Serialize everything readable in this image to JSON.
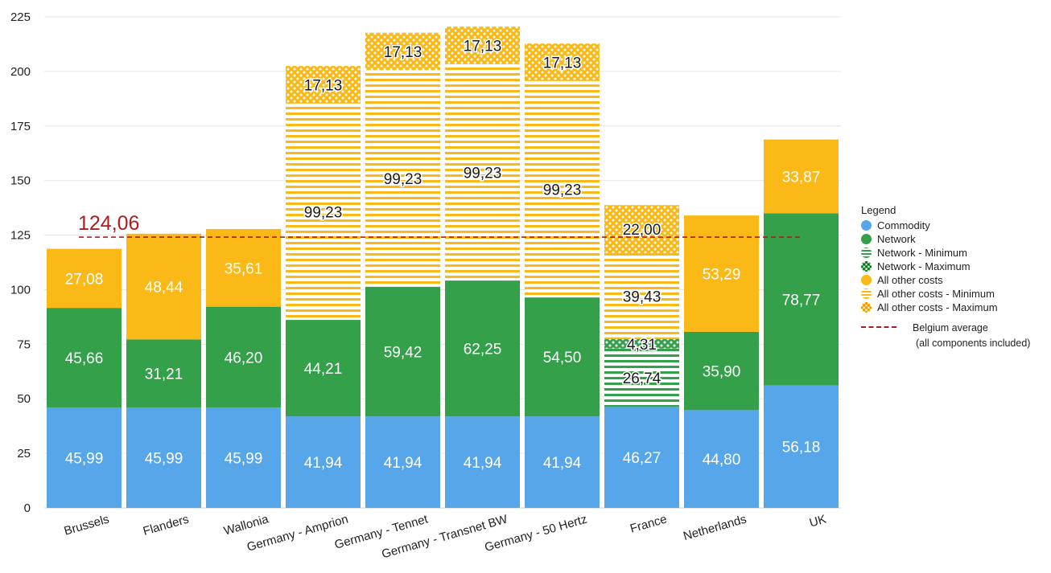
{
  "chart_data": {
    "type": "bar",
    "stacked": true,
    "categories": [
      "Brussels",
      "Flanders",
      "Wallonia",
      "Germany - Amprion",
      "Germany - Tennet",
      "Germany - Transnet BW",
      "Germany - 50 Hertz",
      "France",
      "Netherlands",
      "UK"
    ],
    "ylim": [
      0,
      225
    ],
    "yticks": [
      0,
      25,
      50,
      75,
      100,
      125,
      150,
      175,
      200,
      225
    ],
    "grid": true,
    "series": [
      {
        "name": "Commodity",
        "pattern": "solid",
        "color": "#58a6ea",
        "values": [
          45.99,
          45.99,
          45.99,
          41.94,
          41.94,
          41.94,
          41.94,
          46.27,
          44.8,
          56.18
        ],
        "labels": [
          "45,99",
          "45,99",
          "45,99",
          "41,94",
          "41,94",
          "41,94",
          "41,94",
          "46,27",
          "44,80",
          "56,18"
        ]
      },
      {
        "name": "Network",
        "pattern": "solid",
        "color": "#34a04a",
        "values": [
          45.66,
          31.21,
          46.2,
          44.21,
          59.42,
          62.25,
          54.5,
          0,
          35.9,
          78.77
        ],
        "labels": [
          "45,66",
          "31,21",
          "46,20",
          "44,21",
          "59,42",
          "62,25",
          "54,50",
          "",
          "35,90",
          "78,77"
        ]
      },
      {
        "name": "Network - Minimum",
        "pattern": "stripes",
        "color": "#34a04a",
        "values": [
          0,
          0,
          0,
          0,
          0,
          0,
          0,
          26.74,
          0,
          0
        ],
        "labels": [
          "",
          "",
          "",
          "",
          "",
          "",
          "",
          "26,74",
          "",
          ""
        ]
      },
      {
        "name": "Network - Maximum",
        "pattern": "crosshatch",
        "color": "#34a04a",
        "values": [
          0,
          0,
          0,
          0,
          0,
          0,
          0,
          4.31,
          0,
          0
        ],
        "labels": [
          "",
          "",
          "",
          "",
          "",
          "",
          "",
          "4,31",
          "",
          ""
        ]
      },
      {
        "name": "All other costs",
        "pattern": "solid",
        "color": "#fbb918",
        "values": [
          27.08,
          48.44,
          35.61,
          0,
          0,
          0,
          0,
          0,
          53.29,
          33.87
        ],
        "labels": [
          "27,08",
          "48,44",
          "35,61",
          "",
          "",
          "",
          "",
          "",
          "53,29",
          "33,87"
        ]
      },
      {
        "name": "All other costs - Minimum",
        "pattern": "stripes",
        "color": "#fbb918",
        "values": [
          0,
          0,
          0,
          99.23,
          99.23,
          99.23,
          99.23,
          39.43,
          0,
          0
        ],
        "labels": [
          "",
          "",
          "",
          "99,23",
          "99,23",
          "99,23",
          "99,23",
          "39,43",
          "",
          ""
        ]
      },
      {
        "name": "All other costs - Maximum",
        "pattern": "crosshatch",
        "color": "#fbb918",
        "values": [
          0,
          0,
          0,
          17.13,
          17.13,
          17.13,
          17.13,
          22.0,
          0,
          0
        ],
        "labels": [
          "",
          "",
          "",
          "17,13",
          "17,13",
          "17,13",
          "17,13",
          "22,00",
          "",
          ""
        ]
      }
    ],
    "reference_line": {
      "value": 124.06,
      "label": "124,06",
      "color": "#b01c1c"
    },
    "legend": {
      "title": "Legend",
      "placement": "right",
      "reference_label_line1": "Belgium average",
      "reference_label_line2": "(all components included)"
    }
  }
}
